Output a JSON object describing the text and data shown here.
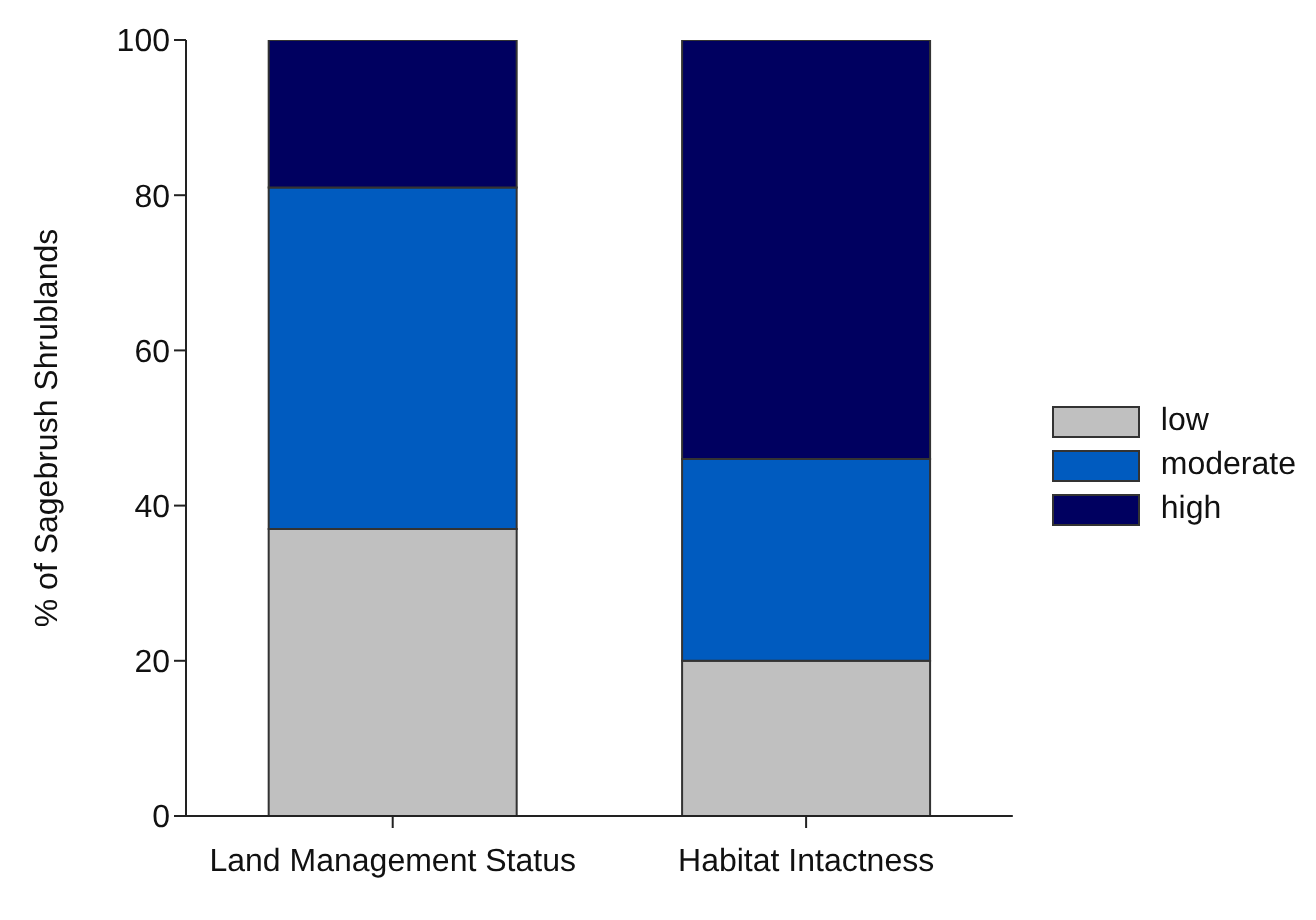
{
  "chart_data": {
    "type": "bar",
    "stacked": true,
    "ylabel": "% of Sagebrush Shrublands",
    "categories": [
      "Land Management Status",
      "Habitat Intactness"
    ],
    "series": [
      {
        "name": "low",
        "color": "#c0c0c0",
        "values": [
          37,
          20
        ]
      },
      {
        "name": "moderate",
        "color": "#005bbf",
        "values": [
          44,
          26
        ]
      },
      {
        "name": "high",
        "color": "#000060",
        "values": [
          19,
          54
        ]
      }
    ],
    "ylim": [
      0,
      100
    ],
    "yticks": [
      0,
      20,
      40,
      60,
      80,
      100
    ],
    "grid": false,
    "legend": "right"
  }
}
